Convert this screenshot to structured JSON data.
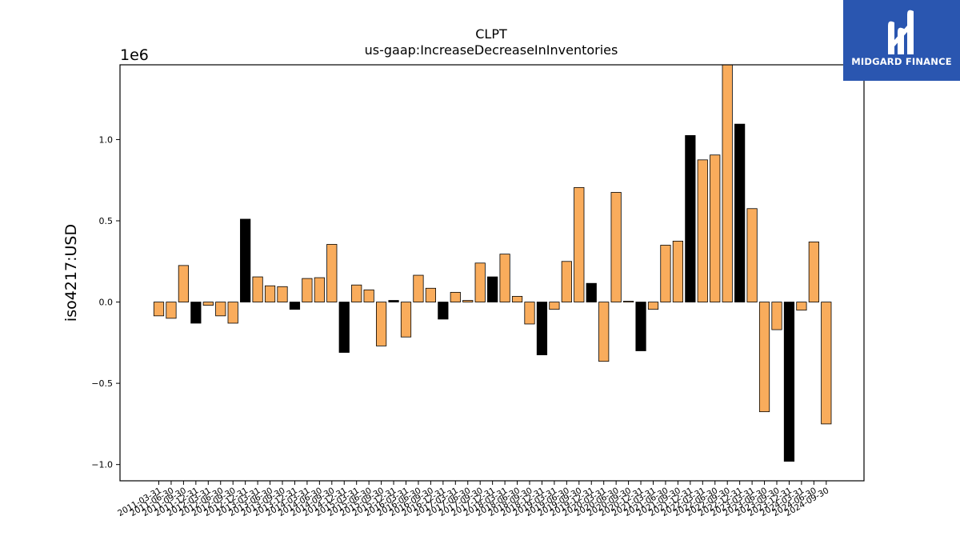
{
  "logo": {
    "text": "MIDGARD FINANCE",
    "icon": "midgard-m-logo-icon",
    "color": "#2a56b0"
  },
  "chart_data": {
    "type": "bar",
    "title": "CLPT",
    "subtitle": "us-gaap:IncreaseDecreaseInInventories",
    "xlabel": "",
    "ylabel": "iso4217:USD",
    "y_offset_label": "1e6",
    "ylim": [
      -1.1,
      1.46
    ],
    "y_scale": 1000000,
    "yticks": [
      -1.0,
      -0.5,
      0.0,
      0.5,
      1.0
    ],
    "ytick_labels": [
      "−1.0",
      "−0.5",
      "0.0",
      "0.5",
      "1.0"
    ],
    "grid": false,
    "colors": {
      "default": "#f9ac5c",
      "highlight": "#000000"
    },
    "categories": [
      "2011-03-31",
      "2011-06-30",
      "2011-09-30",
      "2011-12-31",
      "2012-03-31",
      "2012-06-30",
      "2012-09-30",
      "2012-12-31",
      "2013-03-31",
      "2013-06-30",
      "2013-09-30",
      "2013-12-31",
      "2014-03-31",
      "2014-06-30",
      "2014-09-30",
      "2014-12-31",
      "2015-03-31",
      "2015-06-30",
      "2015-09-30",
      "2015-12-31",
      "2016-03-31",
      "2016-06-30",
      "2016-09-30",
      "2016-12-31",
      "2017-03-31",
      "2017-06-30",
      "2017-09-30",
      "2017-12-31",
      "2018-03-31",
      "2018-06-30",
      "2018-09-30",
      "2018-12-31",
      "2019-03-31",
      "2019-06-30",
      "2019-09-30",
      "2019-12-31",
      "2020-03-31",
      "2020-06-30",
      "2020-09-30",
      "2020-12-31",
      "2021-03-31",
      "2021-06-30",
      "2021-09-30",
      "2021-12-31",
      "2022-03-31",
      "2022-06-30",
      "2022-09-30",
      "2022-12-31",
      "2023-03-31",
      "2023-06-30",
      "2023-09-30",
      "2023-12-31",
      "2024-03-31",
      "2024-06-30",
      "2024-09-30"
    ],
    "values": [
      -0.085,
      -0.1,
      0.225,
      -0.13,
      -0.02,
      -0.085,
      -0.13,
      0.51,
      0.155,
      0.1,
      0.095,
      -0.045,
      0.145,
      0.15,
      0.355,
      -0.31,
      0.105,
      0.075,
      -0.27,
      0.01,
      -0.215,
      0.165,
      0.085,
      -0.105,
      0.06,
      0.01,
      0.24,
      0.155,
      0.295,
      0.035,
      -0.135,
      -0.325,
      -0.045,
      0.25,
      0.705,
      0.115,
      -0.365,
      0.675,
      0.005,
      -0.3,
      -0.045,
      0.35,
      0.375,
      1.025,
      0.875,
      0.905,
      1.46,
      1.095,
      0.575,
      -0.675,
      -0.17,
      -0.98,
      -0.05,
      0.37,
      -0.75
    ],
    "highlight": [
      false,
      false,
      false,
      true,
      false,
      false,
      false,
      true,
      false,
      false,
      false,
      true,
      false,
      false,
      false,
      true,
      false,
      false,
      false,
      true,
      false,
      false,
      false,
      true,
      false,
      false,
      false,
      true,
      false,
      false,
      false,
      true,
      false,
      false,
      false,
      true,
      false,
      false,
      false,
      true,
      false,
      false,
      false,
      true,
      false,
      false,
      false,
      true,
      false,
      false,
      false,
      true,
      false,
      false,
      false
    ]
  }
}
